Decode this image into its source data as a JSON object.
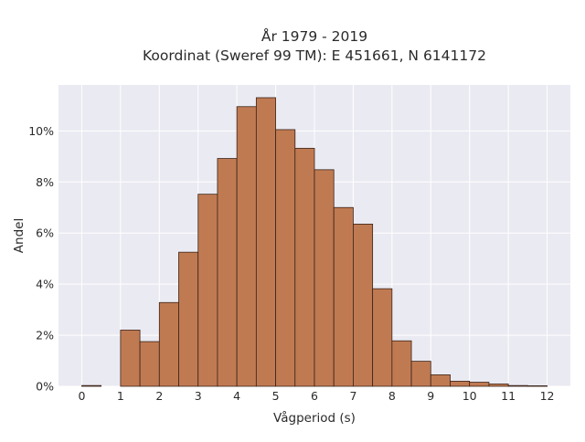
{
  "chart_data": {
    "type": "bar",
    "title_lines": [
      "År 1979 - 2019",
      "Koordinat (Sweref 99 TM): E 451661, N 6141172"
    ],
    "xlabel": "Vågperiod (s)",
    "ylabel": "Andel",
    "xlim": [
      -0.6,
      12.6
    ],
    "ylim": [
      0,
      11.8
    ],
    "xticks": [
      0,
      1,
      2,
      3,
      4,
      5,
      6,
      7,
      8,
      9,
      10,
      11,
      12
    ],
    "yticks": [
      0,
      2,
      4,
      6,
      8,
      10
    ],
    "ytick_labels": [
      "0%",
      "2%",
      "4%",
      "6%",
      "8%",
      "10%"
    ],
    "grid": true,
    "bar_color": "#c07a52",
    "bar_edge_color": "#3a2418",
    "plot_bg": "#eaeaf2",
    "bins": [
      {
        "x0": 0.0,
        "x1": 0.5,
        "value": 0.03
      },
      {
        "x0": 1.0,
        "x1": 1.5,
        "value": 2.2
      },
      {
        "x0": 1.5,
        "x1": 2.0,
        "value": 1.75
      },
      {
        "x0": 2.0,
        "x1": 2.5,
        "value": 3.28
      },
      {
        "x0": 2.5,
        "x1": 3.0,
        "value": 5.25
      },
      {
        "x0": 3.0,
        "x1": 3.5,
        "value": 7.52
      },
      {
        "x0": 3.5,
        "x1": 4.0,
        "value": 8.92
      },
      {
        "x0": 4.0,
        "x1": 4.5,
        "value": 10.95
      },
      {
        "x0": 4.5,
        "x1": 5.0,
        "value": 11.3
      },
      {
        "x0": 5.0,
        "x1": 5.5,
        "value": 10.05
      },
      {
        "x0": 5.5,
        "x1": 6.0,
        "value": 9.32
      },
      {
        "x0": 6.0,
        "x1": 6.5,
        "value": 8.48
      },
      {
        "x0": 6.5,
        "x1": 7.0,
        "value": 7.0
      },
      {
        "x0": 7.0,
        "x1": 7.5,
        "value": 6.35
      },
      {
        "x0": 7.5,
        "x1": 8.0,
        "value": 3.82
      },
      {
        "x0": 8.0,
        "x1": 8.5,
        "value": 1.78
      },
      {
        "x0": 8.5,
        "x1": 9.0,
        "value": 0.98
      },
      {
        "x0": 9.0,
        "x1": 9.5,
        "value": 0.45
      },
      {
        "x0": 9.5,
        "x1": 10.0,
        "value": 0.2
      },
      {
        "x0": 10.0,
        "x1": 10.5,
        "value": 0.16
      },
      {
        "x0": 10.5,
        "x1": 11.0,
        "value": 0.09
      },
      {
        "x0": 11.0,
        "x1": 11.5,
        "value": 0.03
      },
      {
        "x0": 11.5,
        "x1": 12.0,
        "value": 0.02
      }
    ]
  }
}
